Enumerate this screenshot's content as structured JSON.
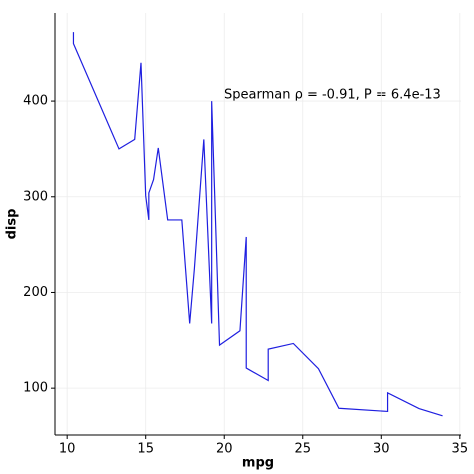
{
  "chart_data": {
    "type": "line",
    "x_label": "mpg",
    "y_label": "disp",
    "annotation": "Spearman ρ = -0.91, P = 6.4e-13",
    "x": [
      10.4,
      10.4,
      13.3,
      14.3,
      14.7,
      15.0,
      15.2,
      15.2,
      15.5,
      15.8,
      16.4,
      17.3,
      17.8,
      18.1,
      18.7,
      19.2,
      19.2,
      19.7,
      21.0,
      21.0,
      21.4,
      21.4,
      21.5,
      22.8,
      22.8,
      24.4,
      26.0,
      27.3,
      30.4,
      30.4,
      32.4,
      33.9
    ],
    "series": [
      {
        "color": "#1f1fe0",
        "values": [
          472,
          460,
          350,
          360,
          440,
          301,
          275.8,
          304,
          318,
          351,
          275.8,
          275.8,
          167.6,
          225,
          360,
          167.6,
          400,
          145,
          160,
          160,
          258,
          121,
          120.1,
          108,
          140.8,
          146.7,
          120.3,
          79,
          75.7,
          95.1,
          78.7,
          71.1
        ]
      }
    ],
    "xlim": [
      9.225,
      35.075
    ],
    "xticks": [
      10,
      15,
      20,
      25,
      30,
      35
    ],
    "ylim": [
      51.05,
      492.05
    ],
    "yticks": [
      100,
      200,
      300,
      400
    ],
    "grid": true
  }
}
